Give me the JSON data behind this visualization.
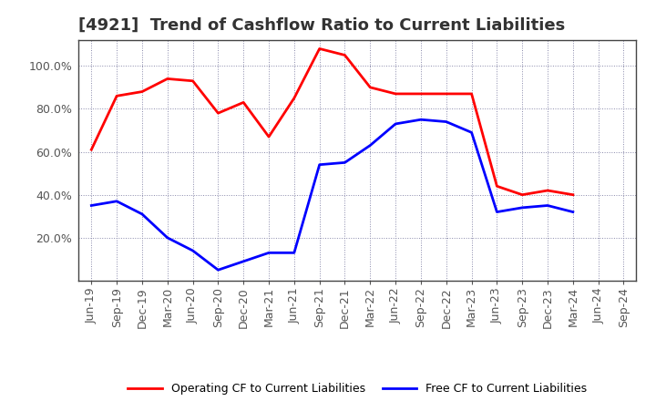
{
  "title": "[4921]  Trend of Cashflow Ratio to Current Liabilities",
  "x_labels": [
    "Jun-19",
    "Sep-19",
    "Dec-19",
    "Mar-20",
    "Jun-20",
    "Sep-20",
    "Dec-20",
    "Mar-21",
    "Jun-21",
    "Sep-21",
    "Dec-21",
    "Mar-22",
    "Jun-22",
    "Sep-22",
    "Dec-22",
    "Mar-23",
    "Jun-23",
    "Sep-23",
    "Dec-23",
    "Mar-24",
    "Jun-24",
    "Sep-24"
  ],
  "operating_cf": [
    61,
    86,
    88,
    94,
    93,
    78,
    83,
    67,
    85,
    108,
    105,
    90,
    87,
    87,
    87,
    87,
    44,
    40,
    42,
    40,
    null,
    null
  ],
  "free_cf": [
    35,
    37,
    31,
    20,
    14,
    5,
    9,
    13,
    13,
    54,
    55,
    63,
    73,
    75,
    74,
    69,
    32,
    34,
    35,
    32,
    null,
    null
  ],
  "operating_color": "#FF0000",
  "free_color": "#0000FF",
  "ylim": [
    0,
    112
  ],
  "yticks": [
    20,
    40,
    60,
    80,
    100
  ],
  "background_color": "#FFFFFF",
  "grid_color": "#8888AA",
  "border_color": "#444444",
  "title_color": "#333333",
  "tick_color": "#555555",
  "legend_op": "Operating CF to Current Liabilities",
  "legend_free": "Free CF to Current Liabilities",
  "title_fontsize": 13,
  "tick_fontsize": 9,
  "legend_fontsize": 9
}
